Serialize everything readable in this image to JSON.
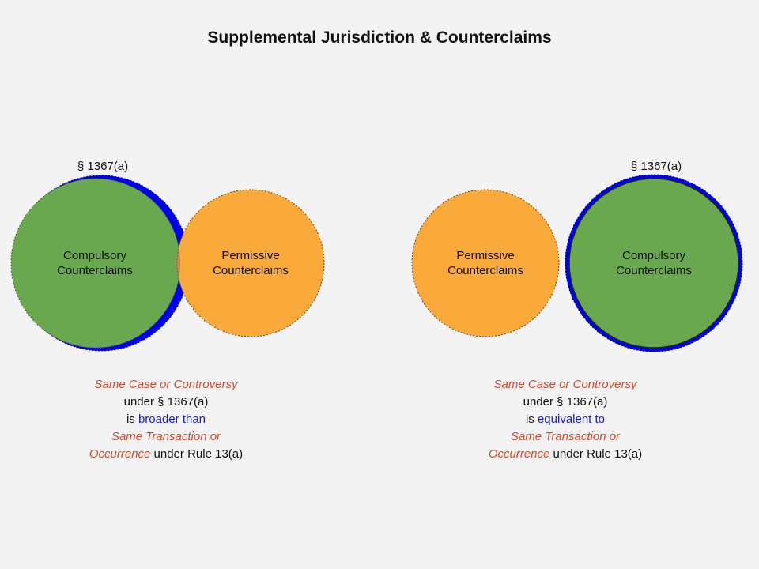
{
  "title": "Supplemental Jurisdiction & Counterclaims",
  "colors": {
    "background": "#f3f3f3",
    "section_1367": "#0000ee",
    "compulsory_fill": "#6aa84f",
    "permissive_fill": "#f9aa3b",
    "overlap_fill": "#c7814a",
    "red_text": "#d24a2c",
    "blue_text": "#1a1ad8"
  },
  "left_diagram": {
    "section_label": "§ 1367(a)",
    "compulsory_label_line1": "Compulsory",
    "compulsory_label_line2": "Counterclaims",
    "permissive_label_line1": "Permissive",
    "permissive_label_line2": "Counterclaims",
    "caption": {
      "line1_red": "Same Case or Controversy",
      "line2": "under § 1367(a)",
      "line3_prefix": "is ",
      "line3_blue": "broader than",
      "line4_red": "Same Transaction or",
      "line5_red": "Occurrence",
      "line5_suffix": " under Rule 13(a)"
    }
  },
  "right_diagram": {
    "section_label": "§ 1367(a)",
    "compulsory_label_line1": "Compulsory",
    "compulsory_label_line2": "Counterclaims",
    "permissive_label_line1": "Permissive",
    "permissive_label_line2": "Counterclaims",
    "caption": {
      "line1_red": "Same Case or Controversy",
      "line2": "under § 1367(a)",
      "line3_prefix": "is ",
      "line3_blue": "equivalent to",
      "line4_red": "Same Transaction or",
      "line5_red": "Occurrence",
      "line5_suffix": " under Rule 13(a)"
    }
  }
}
